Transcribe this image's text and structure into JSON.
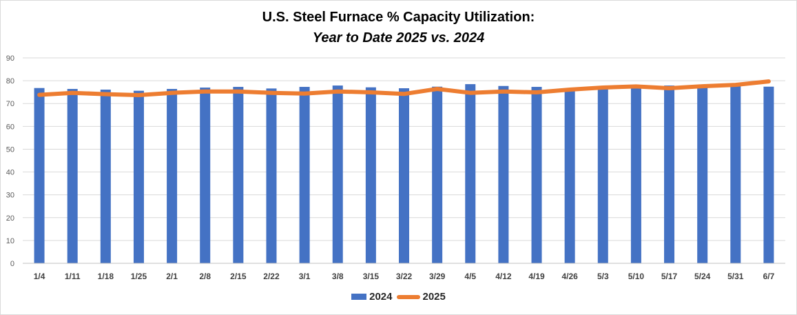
{
  "chart_data": {
    "type": "bar",
    "title": "U.S. Steel Furnace % Capacity Utilization:",
    "subtitle": "Year to Date 2025 vs. 2024",
    "xlabel": "",
    "ylabel": "",
    "ylim": [
      0,
      90
    ],
    "yticks": [
      "0",
      "10",
      "20",
      "30",
      "40",
      "50",
      "60",
      "70",
      "80",
      "90"
    ],
    "grid": true,
    "legend_position": "bottom",
    "categories": [
      "1/4",
      "1/11",
      "1/18",
      "1/25",
      "2/1",
      "2/8",
      "2/15",
      "2/22",
      "3/1",
      "3/8",
      "3/15",
      "3/22",
      "3/29",
      "4/5",
      "4/12",
      "4/19",
      "4/26",
      "5/3",
      "5/10",
      "5/17",
      "5/24",
      "5/31",
      "6/7"
    ],
    "series": [
      {
        "name": "2024",
        "type": "bar",
        "color": "#4472C4",
        "values": [
          76.8,
          76.4,
          76.1,
          75.6,
          76.4,
          77.0,
          77.3,
          76.6,
          77.3,
          77.9,
          77.1,
          76.7,
          77.4,
          78.5,
          77.7,
          77.3,
          76.3,
          77.2,
          77.9,
          77.9,
          77.5,
          77.6,
          77.4
        ]
      },
      {
        "name": "2025",
        "type": "line",
        "color": "#ED7D31",
        "values": [
          73.8,
          74.7,
          74.1,
          73.7,
          74.7,
          75.3,
          75.3,
          74.7,
          74.4,
          75.3,
          74.9,
          74.2,
          76.4,
          74.7,
          75.3,
          74.9,
          76.1,
          77.0,
          77.5,
          76.7,
          77.6,
          78.2,
          79.7
        ]
      }
    ]
  }
}
